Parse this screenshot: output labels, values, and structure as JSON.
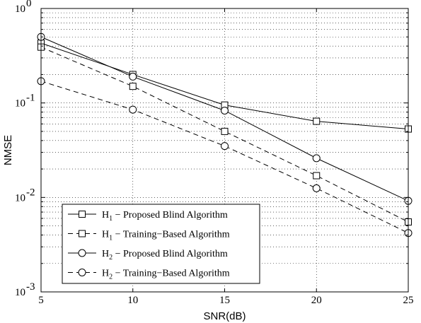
{
  "chart_data": {
    "type": "line",
    "title": "",
    "xlabel": "SNR(dB)",
    "ylabel": "NMSE",
    "xlim": [
      5,
      25
    ],
    "ylim": [
      0.001,
      1
    ],
    "yscale": "log",
    "grid": true,
    "legend_position": "bottom-left",
    "x": [
      5,
      10,
      15,
      20,
      25
    ],
    "x_tick_labels": [
      "5",
      "10",
      "15",
      "20",
      "25"
    ],
    "y_ticks": [
      {
        "base": "10",
        "exp": "0"
      },
      {
        "base": "10",
        "exp": "-1"
      },
      {
        "base": "10",
        "exp": "-2"
      },
      {
        "base": "10",
        "exp": "-3"
      }
    ],
    "series": [
      {
        "name": "Proposed Blind Algorithm",
        "sub": "1",
        "marker": "square",
        "dash": "solid",
        "values": [
          0.43,
          0.2,
          0.095,
          0.064,
          0.053
        ]
      },
      {
        "name": "Training−Based Algorithm",
        "sub": "1",
        "marker": "square",
        "dash": "dashed",
        "values": [
          0.39,
          0.15,
          0.05,
          0.017,
          0.0055
        ]
      },
      {
        "name": "Proposed Blind Algorithm",
        "sub": "2",
        "marker": "circle",
        "dash": "solid",
        "values": [
          0.5,
          0.19,
          0.083,
          0.026,
          0.0092
        ]
      },
      {
        "name": "Training−Based Algorithm",
        "sub": "2",
        "marker": "circle",
        "dash": "dashed",
        "values": [
          0.17,
          0.085,
          0.035,
          0.0125,
          0.0042
        ]
      }
    ],
    "legend_prefix": "H",
    "legend_sep": " − "
  }
}
